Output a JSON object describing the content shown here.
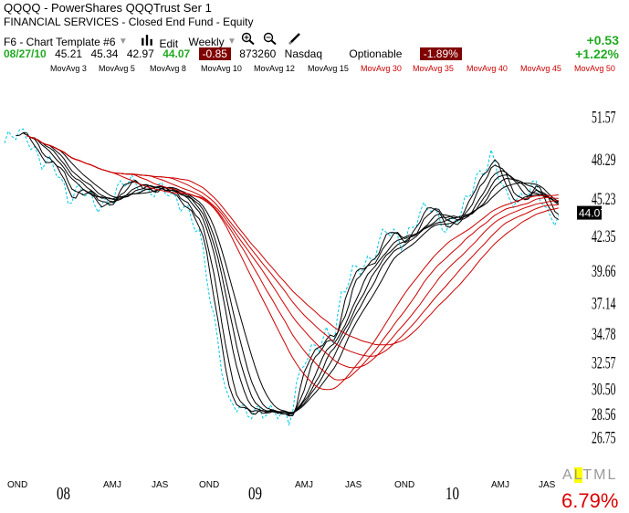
{
  "header": {
    "symbol": "QQQQ",
    "title_sep": " - ",
    "name": "PowerShares QQQTrust Ser 1",
    "category": "FINANCIAL SERVICES",
    "subcategory": "Closed End Fund - Equity",
    "template": "F6 - Chart Template #6",
    "edit_label": "Edit",
    "period": "Weekly"
  },
  "quote": {
    "date": "08/27/10",
    "open": "45.21",
    "high": "45.34",
    "low": "42.97",
    "close": "44.07",
    "change": "-0.85",
    "volume": "873260",
    "exchange": "Nasdaq",
    "optionable": "Optionable",
    "pct_change": "-1.89%",
    "net_change": "+0.53",
    "net_pct": "+1.22%"
  },
  "ma_labels": [
    "MovAvg 3",
    "MovAvg 5",
    "MovAvg 8",
    "MovAvg 10",
    "MovAvg 12",
    "MovAvg 15",
    "MovAvg 30",
    "MovAvg 35",
    "MovAvg 40",
    "MovAvg 45",
    "MovAvg 50"
  ],
  "colors": {
    "short_ma": "#000000",
    "long_ma": "#cc0000",
    "price": "#00c8e8",
    "positive": "#22aa22",
    "negative": "#800000"
  },
  "chart_data": {
    "type": "line",
    "title": "QQQQ",
    "x_ticks": [
      "OND",
      "08",
      "AMJ",
      "JAS",
      "OND",
      "09",
      "AMJ",
      "JAS",
      "OND",
      "10",
      "AMJ",
      "JAS"
    ],
    "y_ticks": [
      51.57,
      48.29,
      45.23,
      42.35,
      39.66,
      37.14,
      34.78,
      32.57,
      30.5,
      28.56,
      26.75
    ],
    "ylim": [
      25.6,
      54.5
    ],
    "xlim": [
      0,
      150
    ],
    "last_price": "44.07",
    "price_series": {
      "name": "",
      "x": [
        0,
        6,
        10,
        14,
        17,
        20,
        24,
        28,
        32,
        36,
        40,
        44,
        48,
        52,
        56,
        60,
        64,
        68,
        70,
        72,
        74,
        76,
        78,
        80,
        82,
        84,
        86,
        88,
        90,
        93,
        96,
        99,
        102,
        106,
        110,
        114,
        118,
        122,
        126,
        130,
        134,
        138,
        142,
        145,
        148
      ],
      "y": [
        49.5,
        50.3,
        48.0,
        47.2,
        45.5,
        46.0,
        44.5,
        45.3,
        46.2,
        46.4,
        45.8,
        45.5,
        45.0,
        42.2,
        36.0,
        29.2,
        28.5,
        29.2,
        28.6,
        28.3,
        28.4,
        28.2,
        31.0,
        32.6,
        33.0,
        33.7,
        35.0,
        34.8,
        37.5,
        39.2,
        40.3,
        41.2,
        42.5,
        42.0,
        43.5,
        44.5,
        43.2,
        43.7,
        47.0,
        48.4,
        45.2,
        45.5,
        45.9,
        44.0,
        44.1
      ]
    },
    "ma_periods": [
      3,
      5,
      8,
      10,
      12,
      15,
      30,
      35,
      40,
      45,
      50
    ]
  },
  "bottom": {
    "altml": [
      "A",
      "L",
      "T",
      "M",
      "L"
    ],
    "pct": "6.79%"
  }
}
